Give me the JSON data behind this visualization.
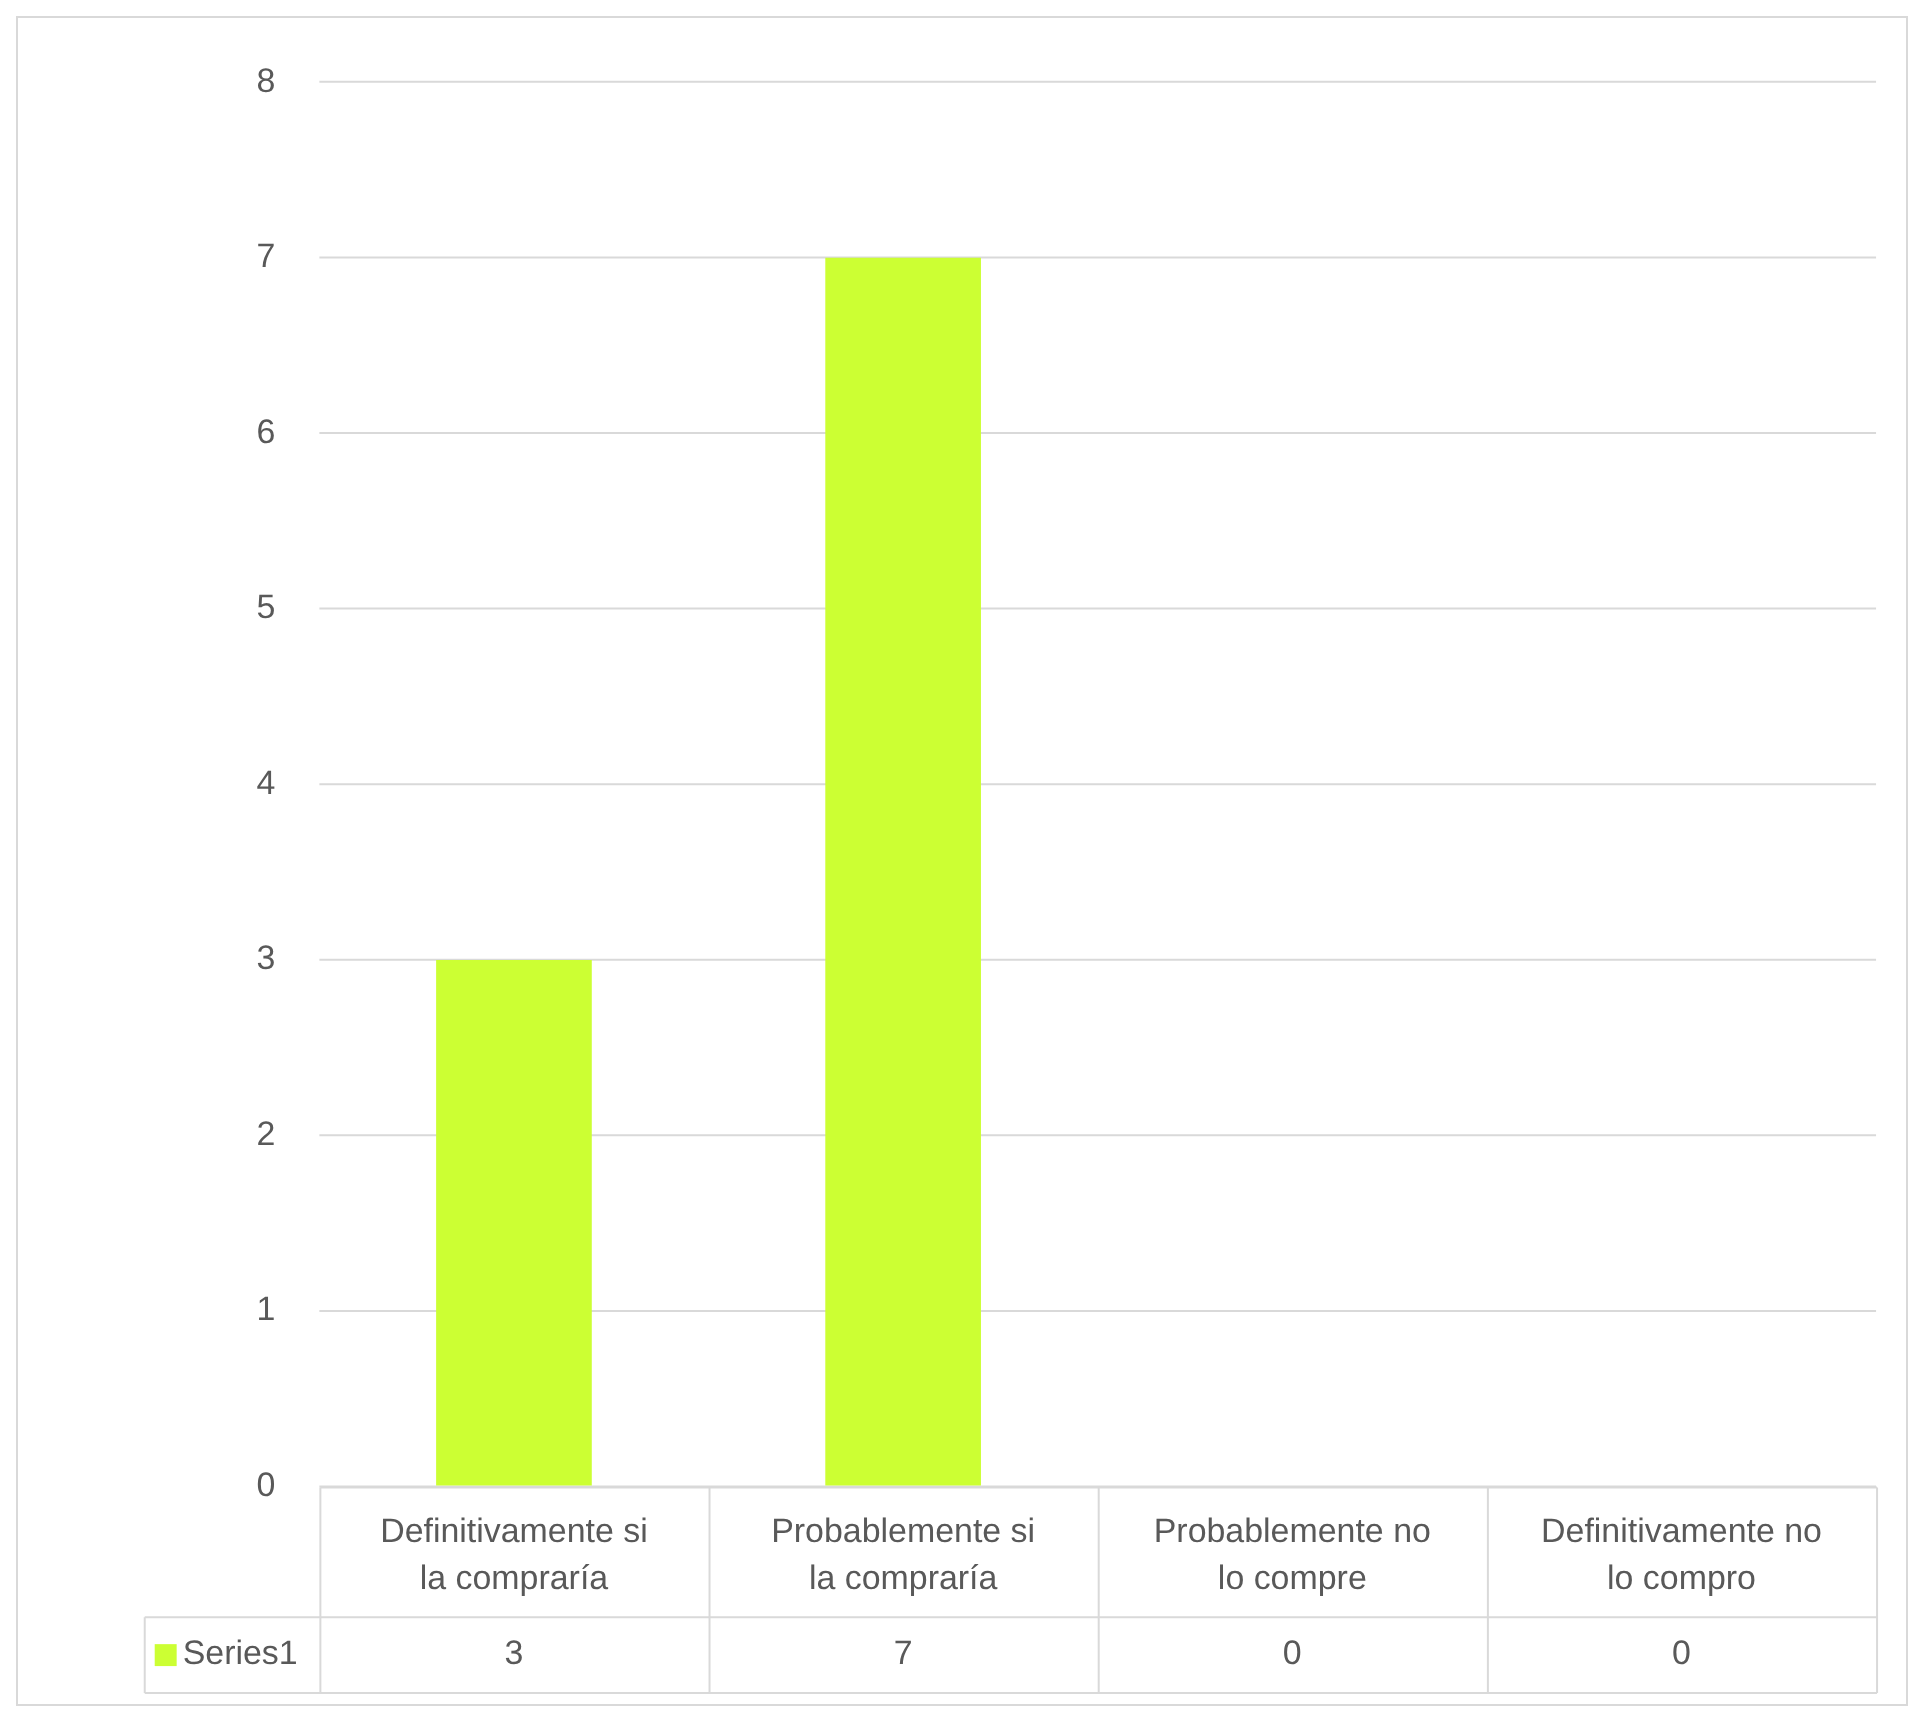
{
  "chart_data": {
    "type": "bar",
    "categories": [
      "Definitivamente si la compraría",
      "Probablemente si la compraría",
      "Probablemente no lo compre",
      "Definitivamente no lo compro"
    ],
    "series": [
      {
        "name": "Series1",
        "color": "#ccff33",
        "values": [
          3,
          7,
          0,
          0
        ]
      }
    ],
    "ylim": [
      0,
      8
    ],
    "yticks": [
      0,
      1,
      2,
      3,
      4,
      5,
      6,
      7,
      8
    ],
    "grid": "y",
    "data_labels": true
  }
}
